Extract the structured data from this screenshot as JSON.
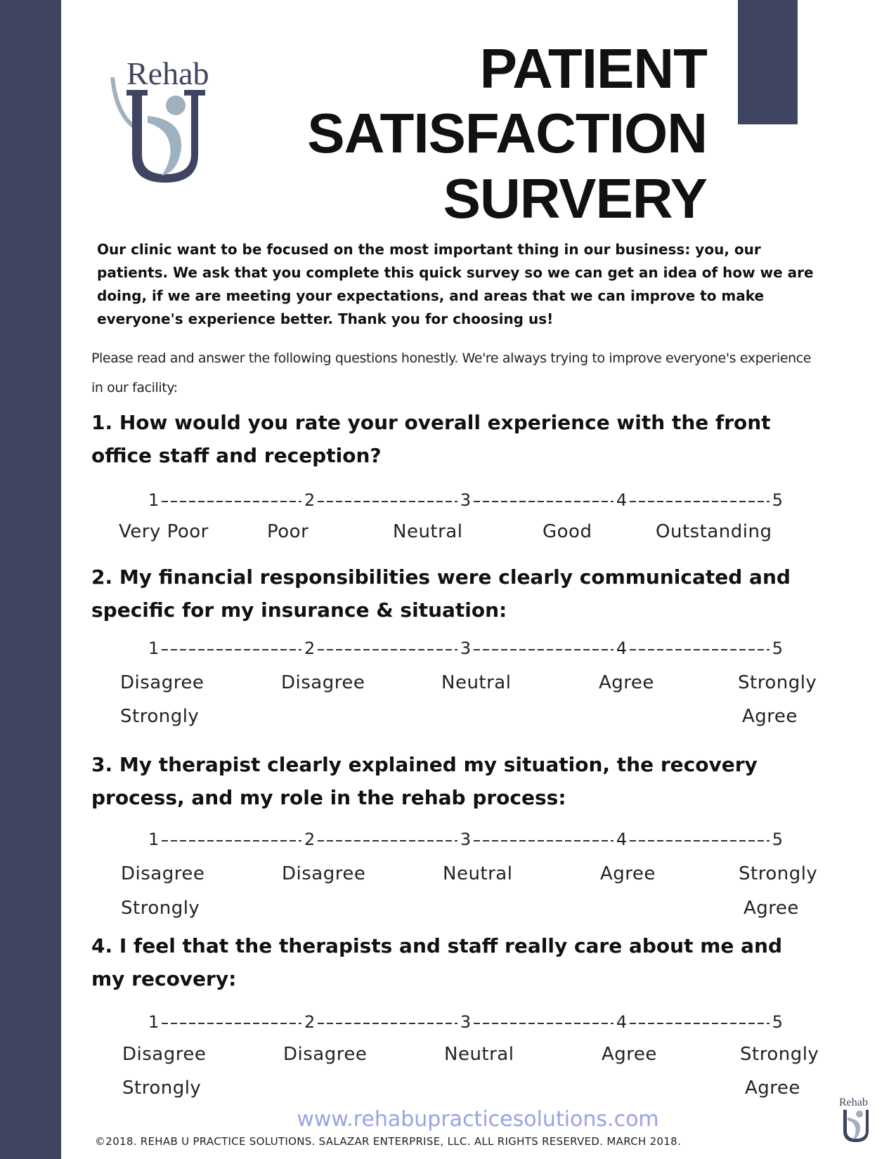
{
  "header": {
    "logo_text": "Rehab",
    "title_lines": [
      "PATIENT",
      "SATISFACTION",
      "SURVERY"
    ]
  },
  "intro": "Our clinic want to be focused on the most important thing in our business: you, our patients. We ask that you complete this quick survey so we can get an idea of how we are doing, if we are meeting your expectations, and areas that we can improve to make everyone's experience better. Thank you for choosing us!",
  "instructions": "Please read and answer the following questions honestly. We're always trying to improve everyone's experience in our facility:",
  "scale_points": [
    "1",
    "2",
    "3",
    "4",
    "5"
  ],
  "questions": [
    {
      "text": "1. How would you rate your overall experience with the front office staff and reception?",
      "labels": [
        "Very Poor",
        "Poor",
        "Neutral",
        "Good",
        "Outstanding"
      ]
    },
    {
      "text": "2. My financial responsibilities were clearly communicated and specific for my insurance & situation:",
      "labels": [
        "Disagree",
        "Disagree",
        "Neutral",
        "Agree",
        "Strongly"
      ],
      "labels2": [
        "Strongly",
        "Agree"
      ]
    },
    {
      "text": "3. My therapist clearly explained my situation, the recovery process, and my role in the rehab process:",
      "labels": [
        "Disagree",
        "Disagree",
        "Neutral",
        "Agree",
        "Strongly"
      ],
      "labels2": [
        "Strongly",
        "Agree"
      ]
    },
    {
      "text": "4. I feel that the therapists and staff really care about me and my recovery:",
      "labels": [
        "Disagree",
        "Disagree",
        "Neutral",
        "Agree",
        "Strongly"
      ],
      "labels2": [
        "Strongly",
        "Agree"
      ]
    }
  ],
  "footer": {
    "url": "www.rehabupracticesolutions.com",
    "copyright": "©2018. REHAB U PRACTICE SOLUTIONS. SALAZAR ENTERPRISE, LLC. ALL RIGHTS RESERVED. MARCH 2018.",
    "logo_text": "Rehab"
  },
  "colors": {
    "accent": "#3f4560",
    "logo_light": "#9fb0be",
    "url": "#9ba2e4"
  }
}
